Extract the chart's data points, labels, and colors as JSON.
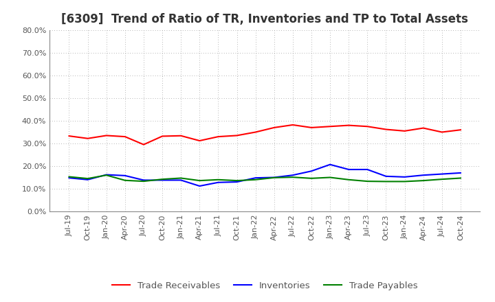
{
  "title": "[6309]  Trend of Ratio of TR, Inventories and TP to Total Assets",
  "ylim": [
    0.0,
    0.8
  ],
  "yticks": [
    0.0,
    0.1,
    0.2,
    0.3,
    0.4,
    0.5,
    0.6,
    0.7,
    0.8
  ],
  "x_labels": [
    "Jul-19",
    "Oct-19",
    "Jan-20",
    "Apr-20",
    "Jul-20",
    "Oct-20",
    "Jan-21",
    "Apr-21",
    "Jul-21",
    "Oct-21",
    "Jan-22",
    "Apr-22",
    "Jul-22",
    "Oct-22",
    "Jan-23",
    "Apr-23",
    "Jul-23",
    "Oct-23",
    "Jan-24",
    "Apr-24",
    "Jul-24",
    "Oct-24"
  ],
  "trade_receivables": [
    0.333,
    0.322,
    0.335,
    0.33,
    0.295,
    0.332,
    0.334,
    0.312,
    0.33,
    0.335,
    0.35,
    0.37,
    0.382,
    0.37,
    0.375,
    0.38,
    0.375,
    0.362,
    0.355,
    0.368,
    0.35,
    0.36
  ],
  "inventories": [
    0.148,
    0.14,
    0.162,
    0.158,
    0.138,
    0.138,
    0.138,
    0.112,
    0.128,
    0.13,
    0.148,
    0.15,
    0.16,
    0.178,
    0.207,
    0.185,
    0.185,
    0.155,
    0.152,
    0.16,
    0.165,
    0.17
  ],
  "trade_payables": [
    0.153,
    0.145,
    0.16,
    0.137,
    0.133,
    0.142,
    0.147,
    0.136,
    0.14,
    0.136,
    0.14,
    0.149,
    0.151,
    0.146,
    0.15,
    0.14,
    0.133,
    0.132,
    0.132,
    0.136,
    0.142,
    0.147
  ],
  "tr_color": "#FF0000",
  "inv_color": "#0000FF",
  "tp_color": "#008000",
  "background_color": "#FFFFFF",
  "grid_color": "#999999",
  "title_color": "#333333",
  "tick_color": "#555555",
  "title_fontsize": 12,
  "legend_fontsize": 9.5,
  "tick_fontsize": 8
}
